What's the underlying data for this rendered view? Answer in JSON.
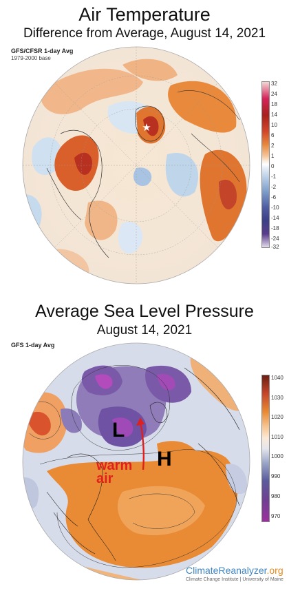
{
  "top_map": {
    "title": "Air Temperature",
    "subtitle": "Difference from Average, August 14, 2021",
    "source": "GFS/CFSR 1-day Avg",
    "base": "1979-2000 base",
    "colorbar_ticks": [
      "32",
      "24",
      "18",
      "14",
      "10",
      "6",
      "2",
      "1",
      "0",
      "-1",
      "-2",
      "-6",
      "-10",
      "-14",
      "-18",
      "-24",
      "-32"
    ],
    "colors": {
      "warm": "#e0752f",
      "hot": "#b8301f",
      "cool": "#8fb4d9",
      "cold": "#4a4d9a"
    }
  },
  "bottom_map": {
    "title": "Average Sea Level Pressure",
    "subtitle": "August 14, 2021",
    "source": "GFS 1-day Avg",
    "colorbar_ticks": [
      "1040",
      "1030",
      "1020",
      "1010",
      "1000",
      "990",
      "980",
      "970"
    ],
    "low_label": "L",
    "high_label": "H",
    "annotation": "warm\nair",
    "colors": {
      "high": "#e8862a",
      "low": "#5e3c8c",
      "annotation": "#e0201c"
    }
  },
  "branding": {
    "name_a": "ClimateReanalyzer",
    "name_b": ".org",
    "sub": "Climate Change Institute | University of Maine"
  }
}
